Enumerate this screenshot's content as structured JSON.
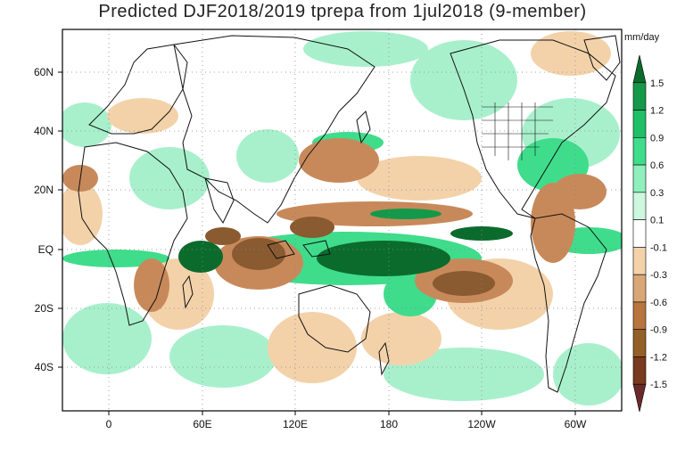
{
  "title": "Predicted DJF2018/2019 tprepa from 1jul2018 (9-member)",
  "units": "mm/day",
  "lat_labels": [
    "60N",
    "40N",
    "20N",
    "EQ",
    "20S",
    "40S"
  ],
  "lon_labels": [
    "0",
    "60E",
    "120E",
    "180",
    "120W",
    "60W"
  ],
  "colorbar": {
    "levels": [
      "1.5",
      "1.2",
      "0.9",
      "0.6",
      "0.3",
      "0.1",
      "-0.1",
      "-0.3",
      "-0.6",
      "-0.9",
      "-1.2",
      "-1.5"
    ],
    "colors": [
      "#0b6b2c",
      "#14994a",
      "#1fbf66",
      "#3fdc8c",
      "#8ff0bd",
      "#cdf7df",
      "#ffffff",
      "#f3d2aa",
      "#d9a677",
      "#b9753f",
      "#946028",
      "#7a3a20",
      "#6b2a2a"
    ]
  },
  "colors": {
    "strong_wet": "#0b6b2c",
    "moderate_wet": "#3fdc8c",
    "light_wet": "#a8f0cc",
    "light_dry": "#f3d2aa",
    "moderate_dry": "#c8895a",
    "strong_dry": "#8a5a30"
  }
}
